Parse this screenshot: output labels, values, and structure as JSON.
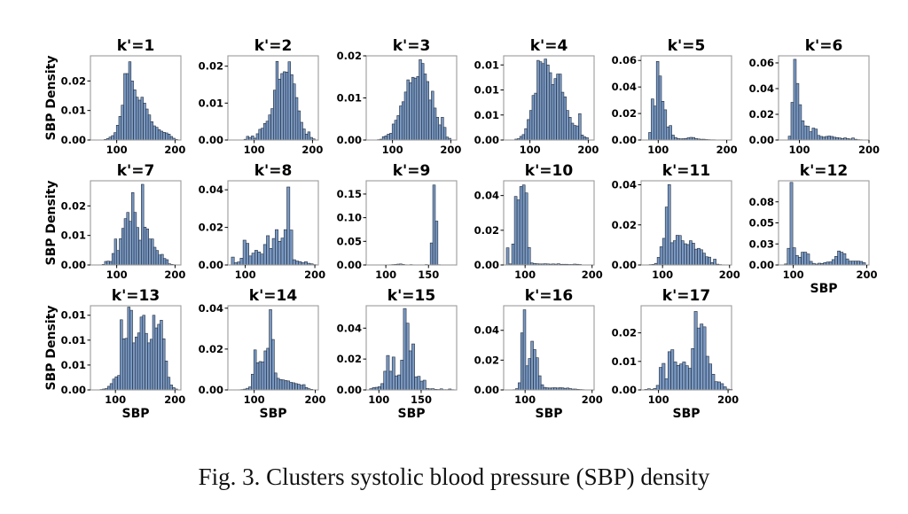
{
  "caption": "Fig. 3.  Clusters systolic blood pressure (SBP) density",
  "chart_data": {
    "type": "bar",
    "layout": "grid of histograms, 3 rows x 6 columns (17 panels)",
    "xlabel": "SBP",
    "ylabel": "SBP Density",
    "bar_color": "#7393c0",
    "bar_edge_color": "#1f2a3a",
    "panels": [
      {
        "title": "k'=1",
        "xlim": [
          55,
          210
        ],
        "xticks": [
          "100",
          "200"
        ],
        "xtick_values": [
          100,
          200
        ],
        "ylim": [
          0,
          0.0285
        ],
        "yticks": [
          "0.00",
          "0.01",
          "0.02"
        ],
        "ytick_values": [
          0,
          0.01,
          0.02
        ],
        "bin_start": 70,
        "bin_width": 4.2,
        "values": [
          0,
          0,
          0.0002,
          0.0005,
          0.001,
          0.0015,
          0.0025,
          0.005,
          0.008,
          0.0118,
          0.0225,
          0.0225,
          0.0265,
          0.02,
          0.017,
          0.0145,
          0.0135,
          0.0145,
          0.0125,
          0.0105,
          0.0085,
          0.0062,
          0.0048,
          0.0043,
          0.0035,
          0.003,
          0.0026,
          0.0024,
          0.002,
          0.0012,
          0.0006,
          0.0002
        ],
        "show_xlabel": false,
        "show_ylabel": true
      },
      {
        "title": "k'=2",
        "xlim": [
          55,
          210
        ],
        "xticks": [
          "100",
          "200"
        ],
        "xtick_values": [
          100,
          200
        ],
        "ylim": [
          0,
          0.0228
        ],
        "yticks": [
          "0.00",
          "0.01",
          "0.02"
        ],
        "ytick_values": [
          0,
          0.01,
          0.02
        ],
        "bin_start": 70,
        "bin_width": 4.2,
        "values": [
          0,
          0,
          0,
          0.0002,
          0.001,
          0.0007,
          0.0011,
          0.0005,
          0.0017,
          0.0029,
          0.0032,
          0.0045,
          0.0051,
          0.0068,
          0.0085,
          0.0135,
          0.0213,
          0.0165,
          0.018,
          0.0185,
          0.0184,
          0.0212,
          0.0177,
          0.0152,
          0.0115,
          0.0079,
          0.0048,
          0.003,
          0.0016,
          0.0022,
          0.0007,
          0.0003
        ],
        "show_xlabel": false,
        "show_ylabel": false
      },
      {
        "title": "k'=3",
        "xlim": [
          55,
          210
        ],
        "xticks": [
          "100",
          "200"
        ],
        "xtick_values": [
          100,
          200
        ],
        "ylim": [
          0,
          0.02
        ],
        "yticks": [
          "0.00",
          "0.01",
          "0.02"
        ],
        "ytick_values": [
          0,
          0.01,
          0.02
        ],
        "bin_start": 70,
        "bin_width": 4.2,
        "values": [
          0,
          0.0001,
          0.0002,
          0.0008,
          0.001,
          0.0014,
          0.0016,
          0.0038,
          0.0047,
          0.0058,
          0.0081,
          0.0091,
          0.0114,
          0.0143,
          0.0136,
          0.0149,
          0.0147,
          0.0151,
          0.0191,
          0.0182,
          0.0157,
          0.0139,
          0.0095,
          0.0116,
          0.0076,
          0.0054,
          0.0036,
          0.0054,
          0.003,
          0.0007,
          0.0004,
          0
        ],
        "show_xlabel": false,
        "show_ylabel": false
      },
      {
        "title": "k'=4",
        "xlim": [
          55,
          210
        ],
        "xticks": [
          "100",
          "200"
        ],
        "xtick_values": [
          100,
          200
        ],
        "ylim": [
          0,
          0.0185
        ],
        "yticks": [
          "0.00",
          "0.01",
          "0.01",
          "0.01"
        ],
        "ytick_values": [
          0,
          0.0055,
          0.011,
          0.0165
        ],
        "bin_start": 70,
        "bin_width": 4.2,
        "values": [
          0,
          0.0002,
          0.0003,
          0.0008,
          0.0012,
          0.0025,
          0.0045,
          0.0065,
          0.0098,
          0.0103,
          0.0175,
          0.0172,
          0.0168,
          0.0178,
          0.0165,
          0.0148,
          0.0122,
          0.0135,
          0.0145,
          0.0145,
          0.0105,
          0.0095,
          0.0065,
          0.005,
          0.0037,
          0.0032,
          0.0031,
          0.0058,
          0.0011,
          0.0007,
          0.0005,
          0
        ],
        "show_xlabel": false,
        "show_ylabel": false
      },
      {
        "title": "k'=5",
        "xlim": [
          75,
          207
        ],
        "xticks": [
          "100",
          "200"
        ],
        "xtick_values": [
          100,
          200
        ],
        "ylim": [
          0,
          0.0635
        ],
        "yticks": [
          "0.00",
          "0.02",
          "0.04",
          "0.06"
        ],
        "ytick_values": [
          0,
          0.02,
          0.04,
          0.06
        ],
        "bin_start": 86,
        "bin_width": 3.75,
        "values": [
          0.0057,
          0.031,
          0.0256,
          0.0593,
          0.0483,
          0.0292,
          0.0228,
          0.0099,
          0.0109,
          0.0037,
          0.0019,
          0.0012,
          0.0009,
          0.001,
          0.0012,
          0.0017,
          0.002,
          0.0019,
          0.0011,
          0.0008,
          0.0006,
          0.0006,
          0.0004,
          0.0003,
          0.0002,
          0.0002,
          0.0001,
          0.0001,
          0.0001,
          0
        ],
        "show_xlabel": false,
        "show_ylabel": false
      },
      {
        "title": "k'=6",
        "xlim": [
          70,
          200
        ],
        "xticks": [
          "100",
          "200"
        ],
        "xtick_values": [
          100,
          200
        ],
        "ylim": [
          0,
          0.0655
        ],
        "yticks": [
          "0.00",
          "0.02",
          "0.04",
          "0.06"
        ],
        "ytick_values": [
          0,
          0.02,
          0.04,
          0.06
        ],
        "bin_start": 84,
        "bin_width": 3.8,
        "values": [
          0.003,
          0.0293,
          0.0628,
          0.044,
          0.0275,
          0.015,
          0.011,
          0.0107,
          0.0065,
          0.0093,
          0.0085,
          0.0036,
          0.0028,
          0.0023,
          0.0028,
          0.0031,
          0.0028,
          0.0022,
          0.0019,
          0.0016,
          0.0012,
          0.0017,
          0.0011,
          0.0008,
          0.0016,
          0.0006,
          0.0003,
          0.0002,
          0,
          0
        ],
        "show_xlabel": false,
        "show_ylabel": false
      },
      {
        "title": "k'=7",
        "xlim": [
          55,
          210
        ],
        "xticks": [
          "100",
          "200"
        ],
        "xtick_values": [
          100,
          200
        ],
        "ylim": [
          0,
          0.0285
        ],
        "yticks": [
          "0.00",
          "0.01",
          "0.02"
        ],
        "ytick_values": [
          0,
          0.01,
          0.02
        ],
        "bin_start": 75,
        "bin_width": 4.2,
        "values": [
          0.0002,
          0.0012,
          0.0013,
          0.0012,
          0.0039,
          0.0088,
          0.0049,
          0.0089,
          0.0124,
          0.0157,
          0.0178,
          0.0148,
          0.0245,
          0.0178,
          0.0127,
          0.0084,
          0.0273,
          0.0128,
          0.0122,
          0.0088,
          0.0088,
          0.006,
          0.0049,
          0.0034,
          0.0036,
          0.0022,
          0.0018,
          0.0004,
          0.0002,
          0.0001,
          0,
          0
        ],
        "show_xlabel": false,
        "show_ylabel": true
      },
      {
        "title": "k'=8",
        "xlim": [
          75,
          205
        ],
        "xticks": [
          "100",
          "200"
        ],
        "xtick_values": [
          100,
          200
        ],
        "ylim": [
          0,
          0.0448
        ],
        "yticks": [
          "0.00",
          "0.02",
          "0.04"
        ],
        "ytick_values": [
          0,
          0.02,
          0.04
        ],
        "bin_start": 80,
        "bin_width": 4.2,
        "values": [
          0.0042,
          0.0012,
          0.0016,
          0.0036,
          0.0132,
          0.0115,
          0.0048,
          0.0063,
          0.0078,
          0.0069,
          0.0058,
          0.0109,
          0.0156,
          0.0088,
          0.0141,
          0.0188,
          0.0126,
          0.0143,
          0.0188,
          0.0415,
          0.0186,
          0.0028,
          0.0021,
          0.0018,
          0.0012,
          0.0017,
          0.0009,
          0.0006,
          0.0002,
          0
        ],
        "show_xlabel": false,
        "show_ylabel": false
      },
      {
        "title": "k'=9",
        "xlim": [
          77,
          183
        ],
        "xticks": [
          "100",
          "150"
        ],
        "xtick_values": [
          100,
          150
        ],
        "ylim": [
          0,
          0.178
        ],
        "yticks": [
          "0.00",
          "0.05",
          "0.10",
          "0.15"
        ],
        "ytick_values": [
          0,
          0.05,
          0.1,
          0.15
        ],
        "bin_start": 80,
        "bin_width": 3.0,
        "values": [
          0,
          0,
          0,
          0,
          0,
          0,
          0,
          0.0002,
          0.0005,
          0.0009,
          0.0012,
          0.0018,
          0.0022,
          0.0012,
          0.0005,
          0.0003,
          0.0008,
          0.0004,
          0.0002,
          0.0001,
          0.0001,
          0.0003,
          0.0009,
          0.0003,
          0.0466,
          0.1691,
          0.0928,
          0.0006,
          0.0002,
          0.0001
        ],
        "show_xlabel": false,
        "show_ylabel": false
      },
      {
        "title": "k'=10",
        "xlim": [
          68,
          203
        ],
        "xticks": [
          "100",
          "200"
        ],
        "xtick_values": [
          100,
          200
        ],
        "ylim": [
          0,
          0.0485
        ],
        "yticks": [
          "0.00",
          "0.02",
          "0.04"
        ],
        "ytick_values": [
          0,
          0.02,
          0.04
        ],
        "bin_start": 72,
        "bin_width": 4.0,
        "values": [
          0.0099,
          0.0006,
          0.0121,
          0.0395,
          0.0375,
          0.0452,
          0.0461,
          0.0415,
          0.0101,
          0.0012,
          0.0009,
          0.0007,
          0.0006,
          0.0006,
          0.0007,
          0.0006,
          0.0005,
          0.0006,
          0.0005,
          0.0007,
          0.0004,
          0.0004,
          0.0004,
          0.0003,
          0.0003,
          0.0005,
          0.0004,
          0.0003,
          0.0001,
          0
        ],
        "show_xlabel": false,
        "show_ylabel": false
      },
      {
        "title": "k'=11",
        "xlim": [
          68,
          203
        ],
        "xticks": [
          "100",
          "200"
        ],
        "xtick_values": [
          100,
          200
        ],
        "ylim": [
          0,
          0.042
        ],
        "yticks": [
          "0.00",
          "0.02",
          "0.04"
        ],
        "ytick_values": [
          0,
          0.02,
          0.04
        ],
        "bin_start": 80,
        "bin_width": 4.0,
        "values": [
          0.0002,
          0.0003,
          0.0008,
          0.0038,
          0.0091,
          0.0133,
          0.0289,
          0.0401,
          0.0111,
          0.0121,
          0.0148,
          0.0147,
          0.0121,
          0.0106,
          0.0102,
          0.0121,
          0.0109,
          0.0079,
          0.0083,
          0.0076,
          0.0059,
          0.0041,
          0.0039,
          0.0012,
          0.0029,
          0.0004,
          0.0002,
          0.0001,
          0,
          0
        ],
        "show_xlabel": false,
        "show_ylabel": false
      },
      {
        "title": "k'=12",
        "xlim": [
          80,
          203
        ],
        "xticks": [
          "100",
          "200"
        ],
        "xtick_values": [
          100,
          200
        ],
        "ylim": [
          0,
          0.1
        ],
        "yticks": [
          "0.00",
          "0.03",
          "0.05",
          "0.08"
        ],
        "ytick_values": [
          0,
          0.025,
          0.05,
          0.075
        ],
        "bin_start": 88,
        "bin_width": 3.8,
        "values": [
          0.0012,
          0.0198,
          0.0981,
          0.0205,
          0.0113,
          0.0092,
          0.0152,
          0.0152,
          0.0131,
          0.0043,
          0.0019,
          0.0011,
          0.0021,
          0.0018,
          0.0028,
          0.0035,
          0.0037,
          0.0064,
          0.0102,
          0.0166,
          0.0152,
          0.0135,
          0.0072,
          0.0046,
          0.0046,
          0.0046,
          0.0046,
          0.0042,
          0.0027,
          0
        ],
        "show_xlabel": true,
        "show_ylabel": false
      },
      {
        "title": "k'=13",
        "xlim": [
          58,
          210
        ],
        "xticks": [
          "100",
          "200"
        ],
        "xtick_values": [
          100,
          200
        ],
        "ylim": [
          0,
          0.0186
        ],
        "yticks": [
          "0.00",
          "0.01",
          "0.01",
          "0.01"
        ],
        "ytick_values": [
          0,
          0.0055,
          0.011,
          0.0165
        ],
        "bin_start": 70,
        "bin_width": 4.2,
        "values": [
          0,
          0.0001,
          0.0002,
          0.0003,
          0.0008,
          0.0014,
          0.0024,
          0.0029,
          0.0032,
          0.0155,
          0.0113,
          0.0114,
          0.0183,
          0.0176,
          0.0104,
          0.0117,
          0.0126,
          0.0161,
          0.0165,
          0.0125,
          0.0104,
          0.0112,
          0.0165,
          0.0137,
          0.0145,
          0.0154,
          0.0113,
          0.0064,
          0.0028,
          0.0011,
          0.0005,
          0.0002
        ],
        "show_xlabel": true,
        "show_ylabel": true
      },
      {
        "title": "k'=14",
        "xlim": [
          57,
          205
        ],
        "xticks": [
          "100",
          "200"
        ],
        "xtick_values": [
          100,
          200
        ],
        "ylim": [
          0,
          0.0412
        ],
        "yticks": [
          "0.00",
          "0.02",
          "0.04"
        ],
        "ytick_values": [
          0,
          0.02,
          0.04
        ],
        "bin_start": 70,
        "bin_width": 4.2,
        "values": [
          0,
          0.0001,
          0.0002,
          0.0004,
          0.0008,
          0.0015,
          0.0077,
          0.0196,
          0.0133,
          0.0139,
          0.0137,
          0.0191,
          0.0204,
          0.0393,
          0.0247,
          0.0083,
          0.0057,
          0.0051,
          0.0049,
          0.0046,
          0.0044,
          0.0037,
          0.0035,
          0.0031,
          0.0028,
          0.0023,
          0.0026,
          0.0012,
          0.0006,
          0.0003,
          0.0001,
          0
        ],
        "show_xlabel": true,
        "show_ylabel": false
      },
      {
        "title": "k'=15",
        "xlim": [
          85,
          192
        ],
        "xticks": [
          "100",
          "150"
        ],
        "xtick_values": [
          100,
          150
        ],
        "ylim": [
          0,
          0.0545
        ],
        "yticks": [
          "0.00",
          "0.02",
          "0.04"
        ],
        "ytick_values": [
          0,
          0.02,
          0.04
        ],
        "bin_start": 89,
        "bin_width": 3.33,
        "values": [
          0.0008,
          0.0015,
          0.0017,
          0.0021,
          0.0041,
          0.0121,
          0.0223,
          0.0121,
          0.0213,
          0.0091,
          0.0097,
          0.0193,
          0.0527,
          0.0432,
          0.0253,
          0.0298,
          0.0085,
          0.0088,
          0.0057,
          0.0063,
          0.0009,
          0.0007,
          0.0008,
          0.0004,
          0.0003,
          0.0007,
          0.0002,
          0.0002,
          0.0006,
          0.0002
        ],
        "show_xlabel": true,
        "show_ylabel": false
      },
      {
        "title": "k'=16",
        "xlim": [
          68,
          203
        ],
        "xticks": [
          "100",
          "200"
        ],
        "xtick_values": [
          100,
          200
        ],
        "ylim": [
          0,
          0.0565
        ],
        "yticks": [
          "0.00",
          "0.02",
          "0.04"
        ],
        "ytick_values": [
          0,
          0.02,
          0.04
        ],
        "bin_start": 82,
        "bin_width": 3.8,
        "values": [
          0.0002,
          0.0009,
          0.0048,
          0.0383,
          0.0538,
          0.0162,
          0.0211,
          0.0327,
          0.0271,
          0.0216,
          0.0095,
          0.0035,
          0.0017,
          0.0014,
          0.0013,
          0.0014,
          0.0015,
          0.0013,
          0.0015,
          0.0014,
          0.0011,
          0.0013,
          0.0009,
          0.0006,
          0.0006,
          0.0004,
          0.0003,
          0.0002,
          0.0001,
          0
        ],
        "show_xlabel": true,
        "show_ylabel": false
      },
      {
        "title": "k'=17",
        "xlim": [
          75,
          205
        ],
        "xticks": [
          "100",
          "200"
        ],
        "xtick_values": [
          100,
          200
        ],
        "ylim": [
          0,
          0.0295
        ],
        "yticks": [
          "0.00",
          "0.01",
          "0.02"
        ],
        "ytick_values": [
          0,
          0.01,
          0.02
        ],
        "bin_start": 80,
        "bin_width": 4.2,
        "values": [
          0.0002,
          0.0004,
          0.0002,
          0.0005,
          0.0016,
          0.0079,
          0.0093,
          0.0039,
          0.0134,
          0.0141,
          0.0098,
          0.0086,
          0.0091,
          0.0098,
          0.0085,
          0.0076,
          0.0145,
          0.0275,
          0.0217,
          0.0231,
          0.0221,
          0.0118,
          0.0091,
          0.0055,
          0.0029,
          0.0028,
          0.0022,
          0.0011,
          0.0003,
          0.0002,
          0
        ],
        "show_xlabel": true,
        "show_ylabel": false
      }
    ]
  }
}
